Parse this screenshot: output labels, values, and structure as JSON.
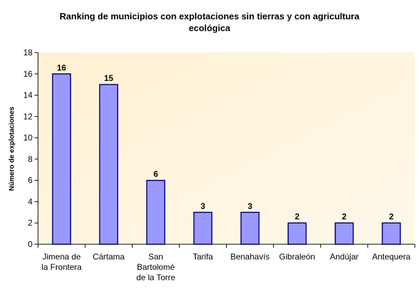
{
  "chart_data": {
    "type": "bar",
    "title": "Ranking de municipios con explotaciones sin tierras y con agricultura ecológica",
    "title_lines": [
      "Ranking de municipios con explotaciones sin tierras y con agricultura",
      "ecológica"
    ],
    "xlabel": "",
    "ylabel": "Número de explotaciones",
    "ylim": [
      0,
      18
    ],
    "yticks": [
      0,
      2,
      4,
      6,
      8,
      10,
      12,
      14,
      16,
      18
    ],
    "categories": [
      "Jimena de la Frontera",
      "Cártama",
      "San Bartolomé de la Torre",
      "Tarifa",
      "Benahavís",
      "Gibraleón",
      "Andújar",
      "Antequera"
    ],
    "category_lines": [
      [
        "Jimena de",
        "la Frontera"
      ],
      [
        "Cártama"
      ],
      [
        "San",
        "Bartolomé",
        "de la Torre"
      ],
      [
        "Tarifa"
      ],
      [
        "Benahavís"
      ],
      [
        "Gibraleón"
      ],
      [
        "Andújar"
      ],
      [
        "Antequera"
      ]
    ],
    "values": [
      16,
      15,
      6,
      3,
      3,
      2,
      2,
      2
    ],
    "data_labels": [
      "16",
      "15",
      "6",
      "3",
      "3",
      "2",
      "2",
      "2"
    ],
    "grid": false,
    "legend": "none",
    "colors": {
      "bar_fill": "#9999FF",
      "bar_stroke": "#000080",
      "plot_background": "#FFF2D6",
      "axis": "#000000"
    }
  }
}
